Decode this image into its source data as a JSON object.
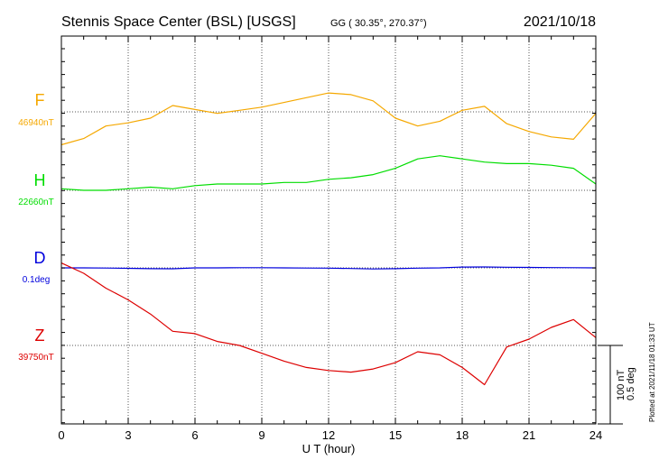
{
  "header": {
    "station": "Stennis Space Center (BSL)  [USGS]",
    "coords": "GG ( 30.35°, 270.37°)",
    "date": "2021/10/18"
  },
  "plotted_note": "Plotted at 2021/11/18 01:33 UT",
  "scale_note_1": "100 nT",
  "scale_note_2": "0.5 deg",
  "chart_data": {
    "type": "line",
    "xlabel": "U T (hour)",
    "xlim": [
      0,
      24
    ],
    "x_ticks": [
      0,
      3,
      6,
      9,
      12,
      15,
      18,
      21,
      24
    ],
    "grid": true,
    "scale_bar": {
      "label_nT": "100 nT",
      "label_deg": "0.5 deg",
      "nT_value": 100,
      "deg_value": 0.5
    },
    "series": [
      {
        "name": "F",
        "baseline_label": "46940nT",
        "baseline_value": 46940,
        "unit": "nT",
        "color": "#f5a800",
        "x": [
          0,
          1,
          2,
          3,
          4,
          5,
          6,
          7,
          8,
          9,
          10,
          11,
          12,
          13,
          14,
          15,
          16,
          17,
          18,
          19,
          20,
          21,
          22,
          23,
          24
        ],
        "y": [
          46898,
          46906,
          46922,
          46926,
          46932,
          46948,
          46943,
          46938,
          46942,
          46946,
          46952,
          46958,
          46964,
          46962,
          46954,
          46932,
          46922,
          46928,
          46942,
          46947,
          46925,
          46915,
          46908,
          46905,
          46938
        ]
      },
      {
        "name": "H",
        "baseline_label": "22660nT",
        "baseline_value": 22660,
        "unit": "nT",
        "color": "#00dd00",
        "x": [
          0,
          1,
          2,
          3,
          4,
          5,
          6,
          7,
          8,
          9,
          10,
          11,
          12,
          13,
          14,
          15,
          16,
          17,
          18,
          19,
          20,
          21,
          22,
          23,
          24
        ],
        "y": [
          22662,
          22660,
          22660,
          22662,
          22664,
          22662,
          22666,
          22668,
          22668,
          22668,
          22670,
          22670,
          22674,
          22676,
          22680,
          22688,
          22700,
          22704,
          22700,
          22696,
          22694,
          22694,
          22692,
          22688,
          22668
        ]
      },
      {
        "name": "D",
        "baseline_label": "0.1deg",
        "baseline_value": 0.1,
        "unit": "deg",
        "color": "#0000dd",
        "x": [
          0,
          1,
          2,
          3,
          4,
          5,
          6,
          7,
          8,
          9,
          10,
          11,
          12,
          13,
          14,
          15,
          16,
          17,
          18,
          19,
          20,
          21,
          22,
          23,
          24
        ],
        "y": [
          0.1,
          0.1,
          0.099,
          0.097,
          0.095,
          0.094,
          0.1,
          0.1,
          0.101,
          0.101,
          0.1,
          0.099,
          0.098,
          0.096,
          0.093,
          0.095,
          0.098,
          0.1,
          0.105,
          0.106,
          0.104,
          0.103,
          0.102,
          0.101,
          0.1
        ]
      },
      {
        "name": "Z",
        "baseline_label": "39750nT",
        "baseline_value": 39750,
        "unit": "nT",
        "color": "#dd0000",
        "x": [
          0,
          1,
          2,
          3,
          4,
          5,
          6,
          7,
          8,
          9,
          10,
          11,
          12,
          13,
          14,
          15,
          16,
          17,
          18,
          19,
          20,
          21,
          22,
          23,
          24
        ],
        "y": [
          39855,
          39842,
          39823,
          39808,
          39790,
          39768,
          39765,
          39755,
          39750,
          39740,
          39730,
          39722,
          39718,
          39716,
          39720,
          39728,
          39742,
          39738,
          39722,
          39700,
          39748,
          39758,
          39773,
          39783,
          39760
        ]
      }
    ]
  }
}
